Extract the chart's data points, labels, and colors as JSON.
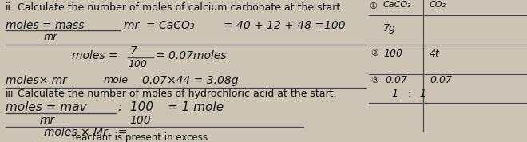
{
  "bg": "#ccc4b4",
  "text_color": "#111111",
  "line_color": "#444444",
  "heading1": "ii   Calculate the number of moles of calcium carbonate at the start.",
  "heading2": "iii  Calculate the number of moles of hydrochloric acid at the start.",
  "formula_row1_left": "moles = mass",
  "formula_row1_mid": "mr = CaCO₃",
  "formula_row1_right": "= 40 + 12 + 48 =100",
  "formula_row1_denom": "mr",
  "formula_row2_left": "moles =",
  "formula_row2_num": "7",
  "formula_row2_denom": "100",
  "formula_row2_right": "= 0.07moles",
  "formula_row3": "moles× mr",
  "formula_row3b": "mole",
  "formula_row3c": "0.07×44 = 3.08g",
  "formula_row4_left": "moles = mav",
  "formula_row4_mid": ":  100",
  "formula_row4_right": "= 1 mole",
  "formula_row4_denom_left": "mr",
  "formula_row4_denom_mid": "100",
  "formula_row5": "moles × Mr   =",
  "bottom_text": "reactant is present in excess.",
  "box_header1": "CaCO₃",
  "box_header2": "CO₂",
  "box_circ1": "①",
  "box_r1c1": "7g",
  "box_circ2": "②",
  "box_r2c1": "100",
  "box_r2c2": "4t",
  "box_circ3": "③",
  "box_r3c1": "0.07",
  "box_r3c2": "0.07",
  "box_r4c1": "1",
  "box_r4sep": ":",
  "box_r4c2": "1"
}
